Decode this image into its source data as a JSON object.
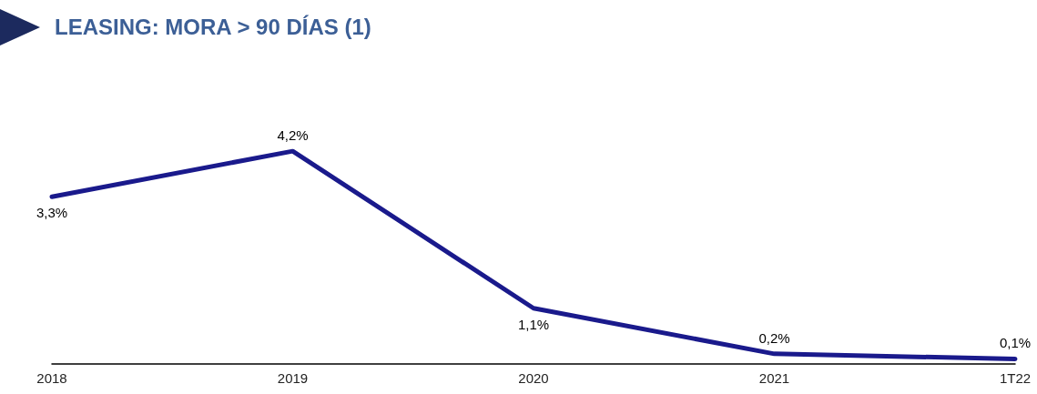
{
  "chart_data": {
    "type": "line",
    "title": "LEASING: MORA > 90 DÍAS (1)",
    "categories": [
      "2018",
      "2019",
      "2020",
      "2021",
      "1T22"
    ],
    "series": [
      {
        "color": "#1a1a8c",
        "values": [
          3.3,
          4.2,
          1.1,
          0.2,
          0.1
        ],
        "value_labels": [
          "3,3%",
          "4,2%",
          "1,1%",
          "0,2%",
          "0,1%"
        ]
      }
    ],
    "grid": false,
    "marker": "none",
    "line_style": "solid"
  }
}
